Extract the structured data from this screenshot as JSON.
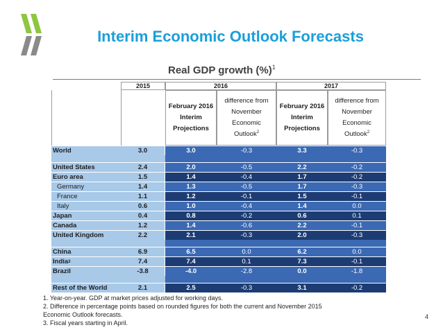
{
  "slide": {
    "title": "Interim Economic Outlook Forecasts",
    "subtitle": "Real GDP growth (%)",
    "subtitle_note": "1",
    "page_number": "4"
  },
  "table": {
    "year_headers": [
      "2015",
      "2016",
      "2017"
    ],
    "col_headers": {
      "feb_line1": "February 2016",
      "feb_line2": "Interim",
      "feb_line3": "Projections",
      "diff_line1": "difference from",
      "diff_line2": "November",
      "diff_line3": "Economic",
      "diff_line4": "Outlook",
      "diff_note": "2"
    },
    "rows": [
      {
        "label": "World",
        "v2015": "3.0",
        "p2016": "3.0",
        "d2016": "-0.3",
        "p2017": "3.3",
        "d2017": "-0.3"
      },
      {
        "label": "United States",
        "v2015": "2.4",
        "p2016": "2.0",
        "d2016": "-0.5",
        "p2017": "2.2",
        "d2017": "-0.2"
      },
      {
        "label": "Euro area",
        "v2015": "1.5",
        "p2016": "1.4",
        "d2016": "-0.4",
        "p2017": "1.7",
        "d2017": "-0.2"
      },
      {
        "label": "Germany",
        "v2015": "1.4",
        "p2016": "1.3",
        "d2016": "-0.5",
        "p2017": "1.7",
        "d2017": "-0.3"
      },
      {
        "label": "France",
        "v2015": "1.1",
        "p2016": "1.2",
        "d2016": "-0.1",
        "p2017": "1.5",
        "d2017": "-0.1"
      },
      {
        "label": "Italy",
        "v2015": "0.6",
        "p2016": "1.0",
        "d2016": "-0.4",
        "p2017": "1.4",
        "d2017": "0.0"
      },
      {
        "label": "Japan",
        "v2015": "0.4",
        "p2016": "0.8",
        "d2016": "-0.2",
        "p2017": "0.6",
        "d2017": "0.1"
      },
      {
        "label": "Canada",
        "v2015": "1.2",
        "p2016": "1.4",
        "d2016": "-0.6",
        "p2017": "2.2",
        "d2017": "-0.1"
      },
      {
        "label": "United Kingdom",
        "v2015": "2.2",
        "p2016": "2.1",
        "d2016": "-0.3",
        "p2017": "2.0",
        "d2017": "-0.3"
      },
      {
        "label": "China",
        "v2015": "6.9",
        "p2016": "6.5",
        "d2016": "0.0",
        "p2017": "6.2",
        "d2017": "0.0"
      },
      {
        "label": "India",
        "label_note": "3",
        "v2015": "7.4",
        "p2016": "7.4",
        "d2016": "0.1",
        "p2017": "7.3",
        "d2017": "-0.1"
      },
      {
        "label": "Brazil",
        "v2015": "-3.8",
        "p2016": "-4.0",
        "d2016": "-2.8",
        "p2017": "0.0",
        "d2017": "-1.8"
      },
      {
        "label": "Rest of the World",
        "v2015": "2.1",
        "p2016": "2.5",
        "d2016": "-0.3",
        "p2017": "3.1",
        "d2017": "-0.2"
      }
    ]
  },
  "notes": [
    "1. Year-on-year. GDP at market prices adjusted for working days.",
    "2. Difference in percentage points based on rounded figures for both the current and November 2015",
    "Economic Outlook forecasts.",
    "3. Fiscal years starting in April."
  ],
  "colors": {
    "title": "#1a9fd9",
    "light_blue": "#a8c9e8",
    "mid_blue": "#3b69b3",
    "navy": "#1d3c73",
    "logo_green": "#8dc63f",
    "logo_gray": "#8a8a8a"
  },
  "icons": {
    "logo": "oecd-chevron-logo"
  }
}
